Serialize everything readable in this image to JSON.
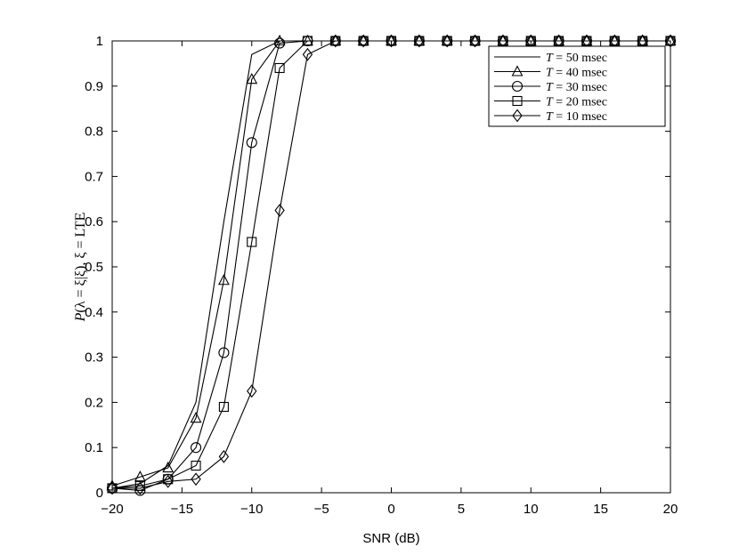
{
  "chart_data": {
    "type": "line",
    "xlabel": "SNR (dB)",
    "ylabel_parts": [
      "P",
      "(λ = ξ|ξ), ξ = LTE"
    ],
    "xlim": [
      -20,
      20
    ],
    "ylim": [
      0,
      1
    ],
    "xticks": [
      "−20",
      "−15",
      "−10",
      "−5",
      "0",
      "5",
      "10",
      "15",
      "20"
    ],
    "yticks": [
      "0",
      "0.1",
      "0.2",
      "0.3",
      "0.4",
      "0.5",
      "0.6",
      "0.7",
      "0.8",
      "0.9",
      "1"
    ],
    "grid": false,
    "legend_position": "top-right",
    "x": [
      -20,
      -18,
      -16,
      -14,
      -12,
      -10,
      -8,
      -6,
      -4,
      -2,
      0,
      2,
      4,
      6,
      8,
      10,
      12,
      14,
      16,
      18,
      20
    ],
    "series": [
      {
        "legend_var": "T",
        "legend_rest": " = 50 msec",
        "marker": "none",
        "values": [
          0.01,
          0.02,
          0.06,
          0.2,
          0.6,
          0.97,
          1.0,
          1.0,
          1.0,
          1.0,
          1.0,
          1.0,
          1.0,
          1.0,
          1.0,
          1.0,
          1.0,
          1.0,
          1.0,
          1.0,
          1.0
        ]
      },
      {
        "legend_var": "T",
        "legend_rest": " = 40 msec",
        "marker": "triangle",
        "values": [
          0.015,
          0.035,
          0.055,
          0.165,
          0.47,
          0.915,
          1.0,
          1.0,
          1.0,
          1.0,
          1.0,
          1.0,
          1.0,
          1.0,
          1.0,
          1.0,
          1.0,
          1.0,
          1.0,
          1.0,
          1.0
        ]
      },
      {
        "legend_var": "T",
        "legend_rest": " = 30 msec",
        "marker": "circle",
        "values": [
          0.01,
          0.005,
          0.03,
          0.1,
          0.31,
          0.775,
          0.995,
          1.0,
          1.0,
          1.0,
          1.0,
          1.0,
          1.0,
          1.0,
          1.0,
          1.0,
          1.0,
          1.0,
          1.0,
          1.0,
          1.0
        ]
      },
      {
        "legend_var": "T",
        "legend_rest": " = 20 msec",
        "marker": "square",
        "values": [
          0.01,
          0.015,
          0.03,
          0.06,
          0.19,
          0.555,
          0.94,
          1.0,
          1.0,
          1.0,
          1.0,
          1.0,
          1.0,
          1.0,
          1.0,
          1.0,
          1.0,
          1.0,
          1.0,
          1.0,
          1.0
        ]
      },
      {
        "legend_var": "T",
        "legend_rest": " = 10 msec",
        "marker": "diamond",
        "values": [
          0.01,
          0.01,
          0.025,
          0.03,
          0.08,
          0.225,
          0.625,
          0.97,
          1.0,
          1.0,
          1.0,
          1.0,
          1.0,
          1.0,
          1.0,
          1.0,
          1.0,
          1.0,
          1.0,
          1.0,
          1.0
        ]
      }
    ]
  }
}
